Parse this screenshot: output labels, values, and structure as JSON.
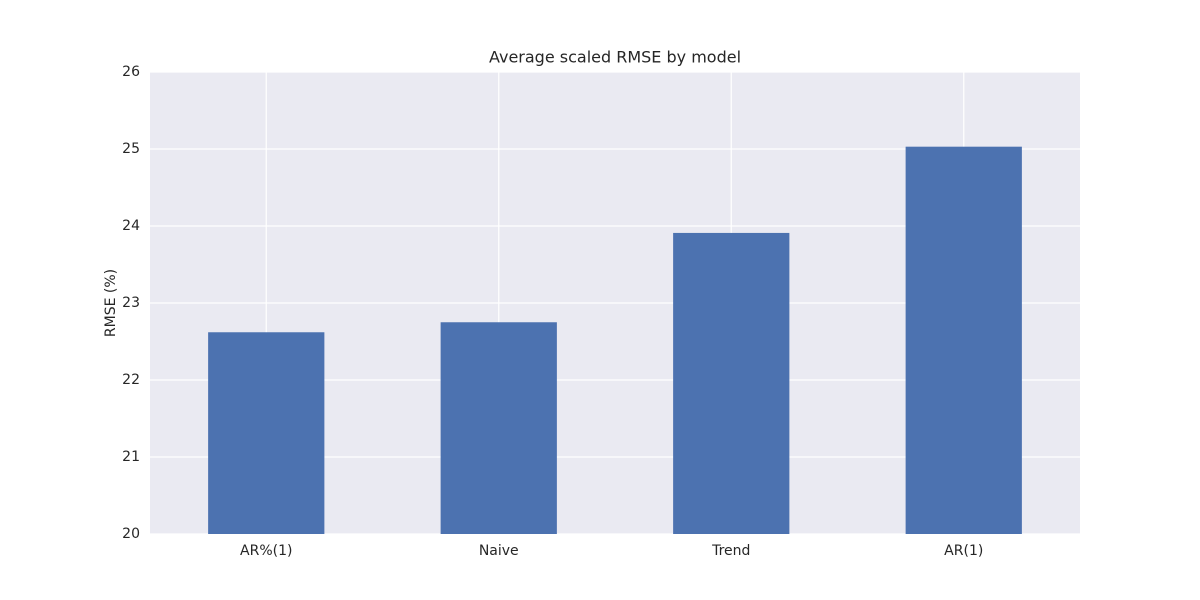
{
  "chart_data": {
    "type": "bar",
    "title": "Average scaled RMSE by model",
    "ylabel": "RMSE (%)",
    "categories": [
      "AR%(1)",
      "Naive",
      "Trend",
      "AR(1)"
    ],
    "values": [
      22.62,
      22.75,
      23.91,
      25.03
    ],
    "color": "#4c72b0",
    "ylim": [
      20,
      26
    ],
    "yticks": [
      20,
      21,
      22,
      23,
      24,
      25,
      26
    ],
    "grid": true
  }
}
